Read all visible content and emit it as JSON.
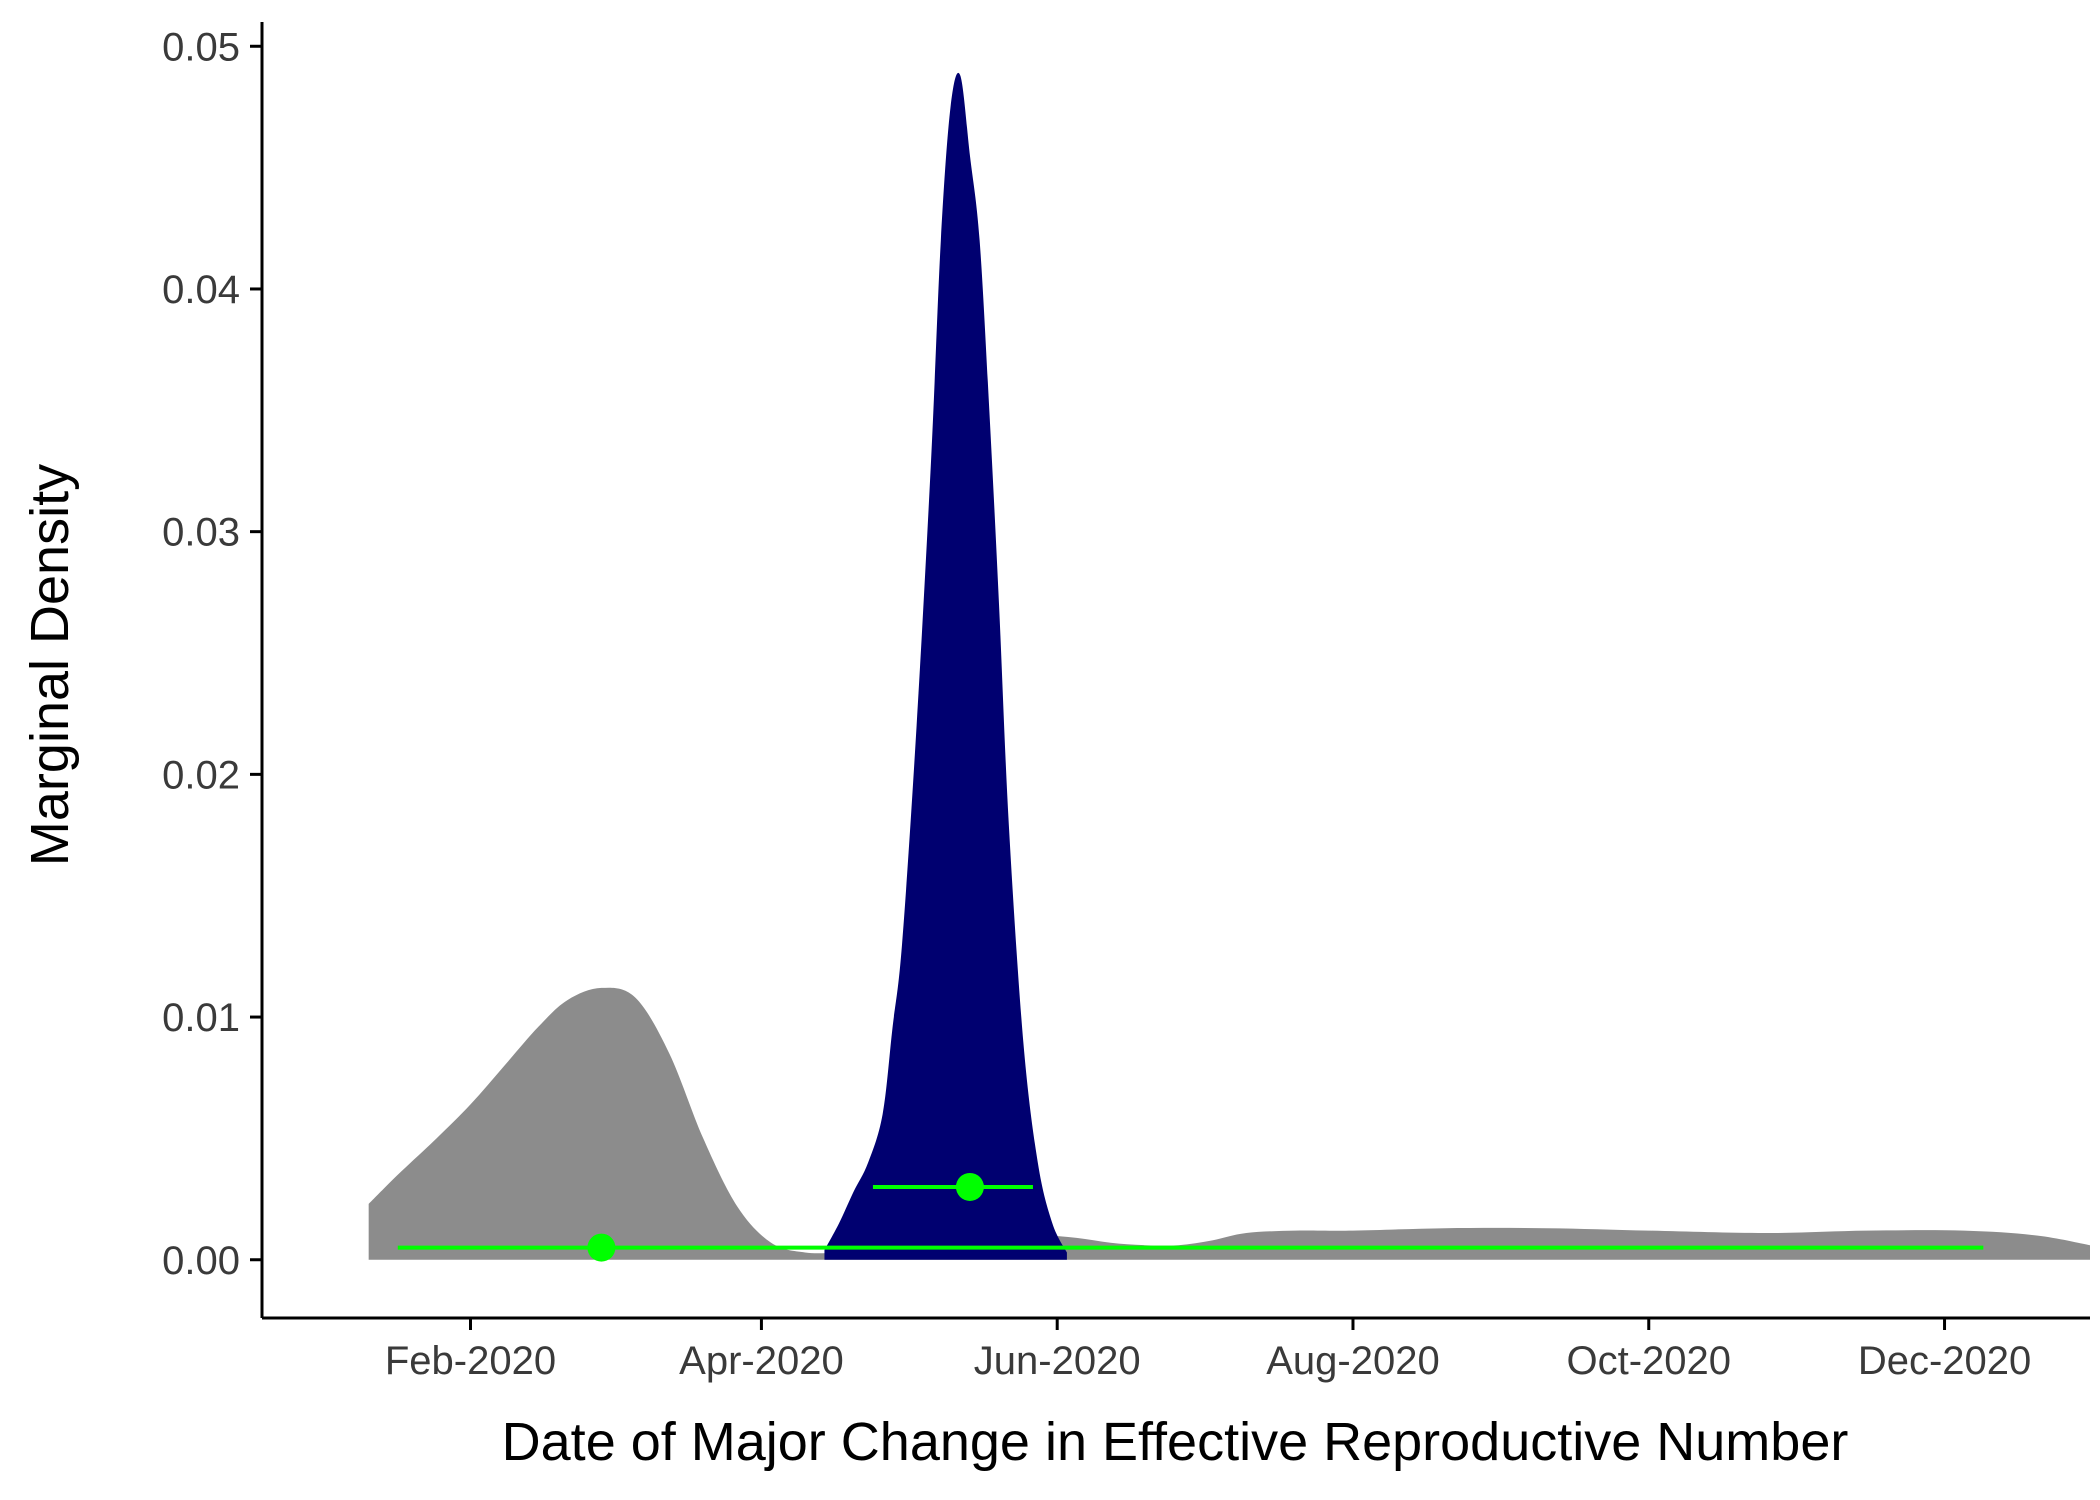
{
  "chart_data": {
    "type": "area",
    "title": "",
    "xlabel": "Date of Major Change in Effective Reproductive Number",
    "ylabel": "Marginal Density",
    "x_unit": "date",
    "xlim": [
      "2019-12-20",
      "2020-12-31"
    ],
    "ylim": [
      -0.0024,
      0.051
    ],
    "x_ticks": [
      "2020-02-01",
      "2020-04-01",
      "2020-06-01",
      "2020-08-01",
      "2020-10-01",
      "2020-12-01"
    ],
    "x_tick_labels": [
      "Feb-2020",
      "Apr-2020",
      "Jun-2020",
      "Aug-2020",
      "Oct-2020",
      "Dec-2020"
    ],
    "y_ticks": [
      0.0,
      0.01,
      0.02,
      0.03,
      0.04,
      0.05
    ],
    "y_tick_labels": [
      "0.00",
      "0.01",
      "0.02",
      "0.03",
      "0.04",
      "0.05"
    ],
    "grid": false,
    "legend": "none",
    "series": [
      {
        "color": "#8c8c8c",
        "points": [
          [
            "2020-01-11",
            0.0023
          ],
          [
            "2020-01-17",
            0.0035
          ],
          [
            "2020-01-25",
            0.005
          ],
          [
            "2020-02-01",
            0.0064
          ],
          [
            "2020-02-08",
            0.008
          ],
          [
            "2020-02-15",
            0.0096
          ],
          [
            "2020-02-21",
            0.0107
          ],
          [
            "2020-02-28",
            0.0112
          ],
          [
            "2020-03-06",
            0.0108
          ],
          [
            "2020-03-13",
            0.0085
          ],
          [
            "2020-03-20",
            0.005
          ],
          [
            "2020-03-27",
            0.0022
          ],
          [
            "2020-04-03",
            0.0007
          ],
          [
            "2020-04-10",
            0.0003
          ],
          [
            "2020-04-17",
            0.0003
          ],
          [
            "2020-04-24",
            0.0004
          ],
          [
            "2020-05-01",
            0.0006
          ],
          [
            "2020-05-08",
            0.0007
          ],
          [
            "2020-05-15",
            0.0008
          ],
          [
            "2020-05-22",
            0.0009
          ],
          [
            "2020-05-29",
            0.001
          ],
          [
            "2020-06-05",
            0.0009
          ],
          [
            "2020-06-12",
            0.0007
          ],
          [
            "2020-06-19",
            0.0006
          ],
          [
            "2020-06-26",
            0.0006
          ],
          [
            "2020-07-03",
            0.0008
          ],
          [
            "2020-07-10",
            0.0011
          ],
          [
            "2020-07-20",
            0.0012
          ],
          [
            "2020-08-01",
            0.0012
          ],
          [
            "2020-08-20",
            0.0013
          ],
          [
            "2020-09-10",
            0.0013
          ],
          [
            "2020-10-01",
            0.0012
          ],
          [
            "2020-10-25",
            0.0011
          ],
          [
            "2020-11-15",
            0.0012
          ],
          [
            "2020-12-05",
            0.0012
          ],
          [
            "2020-12-20",
            0.001
          ],
          [
            "2020-12-31",
            0.0006
          ]
        ]
      },
      {
        "color": "#000070",
        "points": [
          [
            "2020-04-14",
            0.0004
          ],
          [
            "2020-04-17",
            0.0015
          ],
          [
            "2020-04-20",
            0.0028
          ],
          [
            "2020-04-23",
            0.004
          ],
          [
            "2020-04-26",
            0.006
          ],
          [
            "2020-04-28",
            0.0095
          ],
          [
            "2020-04-30",
            0.013
          ],
          [
            "2020-05-03",
            0.022
          ],
          [
            "2020-05-06",
            0.033
          ],
          [
            "2020-05-08",
            0.042
          ],
          [
            "2020-05-10",
            0.0475
          ],
          [
            "2020-05-12",
            0.0488
          ],
          [
            "2020-05-14",
            0.0455
          ],
          [
            "2020-05-16",
            0.042
          ],
          [
            "2020-05-18",
            0.035
          ],
          [
            "2020-05-20",
            0.027
          ],
          [
            "2020-05-22",
            0.018
          ],
          [
            "2020-05-25",
            0.009
          ],
          [
            "2020-05-28",
            0.004
          ],
          [
            "2020-05-31",
            0.0015
          ],
          [
            "2020-06-03",
            0.0003
          ]
        ]
      }
    ],
    "intervals": [
      {
        "color": "#00ff00",
        "point": [
          "2020-02-28",
          0.0005
        ],
        "low": "2020-01-17",
        "high": "2020-12-09"
      },
      {
        "color": "#00ff00",
        "point": [
          "2020-05-14",
          0.003
        ],
        "low": "2020-04-24",
        "high": "2020-05-27"
      }
    ]
  }
}
